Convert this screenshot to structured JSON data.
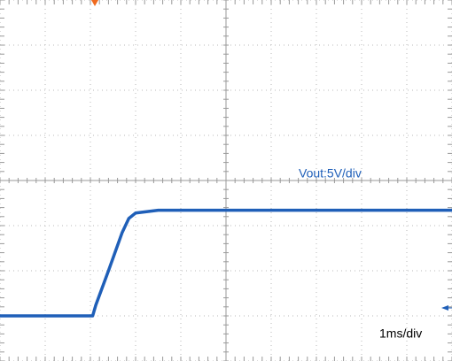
{
  "chart_data": {
    "type": "line",
    "annotations": [
      "Vout:5V/div",
      "1ms/div"
    ],
    "x": [
      0,
      1,
      2.05,
      2.12,
      2.4,
      2.7,
      2.85,
      3.0,
      3.5,
      5,
      7,
      10
    ],
    "series": [
      {
        "name": "Vout",
        "color": "#1f5fb8",
        "values": [
          -1,
          -1,
          -1,
          0.2,
          4.0,
          8.2,
          9.8,
          10.4,
          10.7,
          10.7,
          10.7,
          10.7
        ]
      }
    ],
    "xlim": [
      0,
      10
    ],
    "xticks": [
      0,
      1,
      2,
      3,
      4,
      5,
      6,
      7,
      8,
      9,
      10
    ],
    "ylim": [
      -6,
      34
    ],
    "yticks": [
      -6,
      -1,
      4,
      9,
      14,
      19,
      24,
      29,
      34
    ],
    "grid": true
  }
}
